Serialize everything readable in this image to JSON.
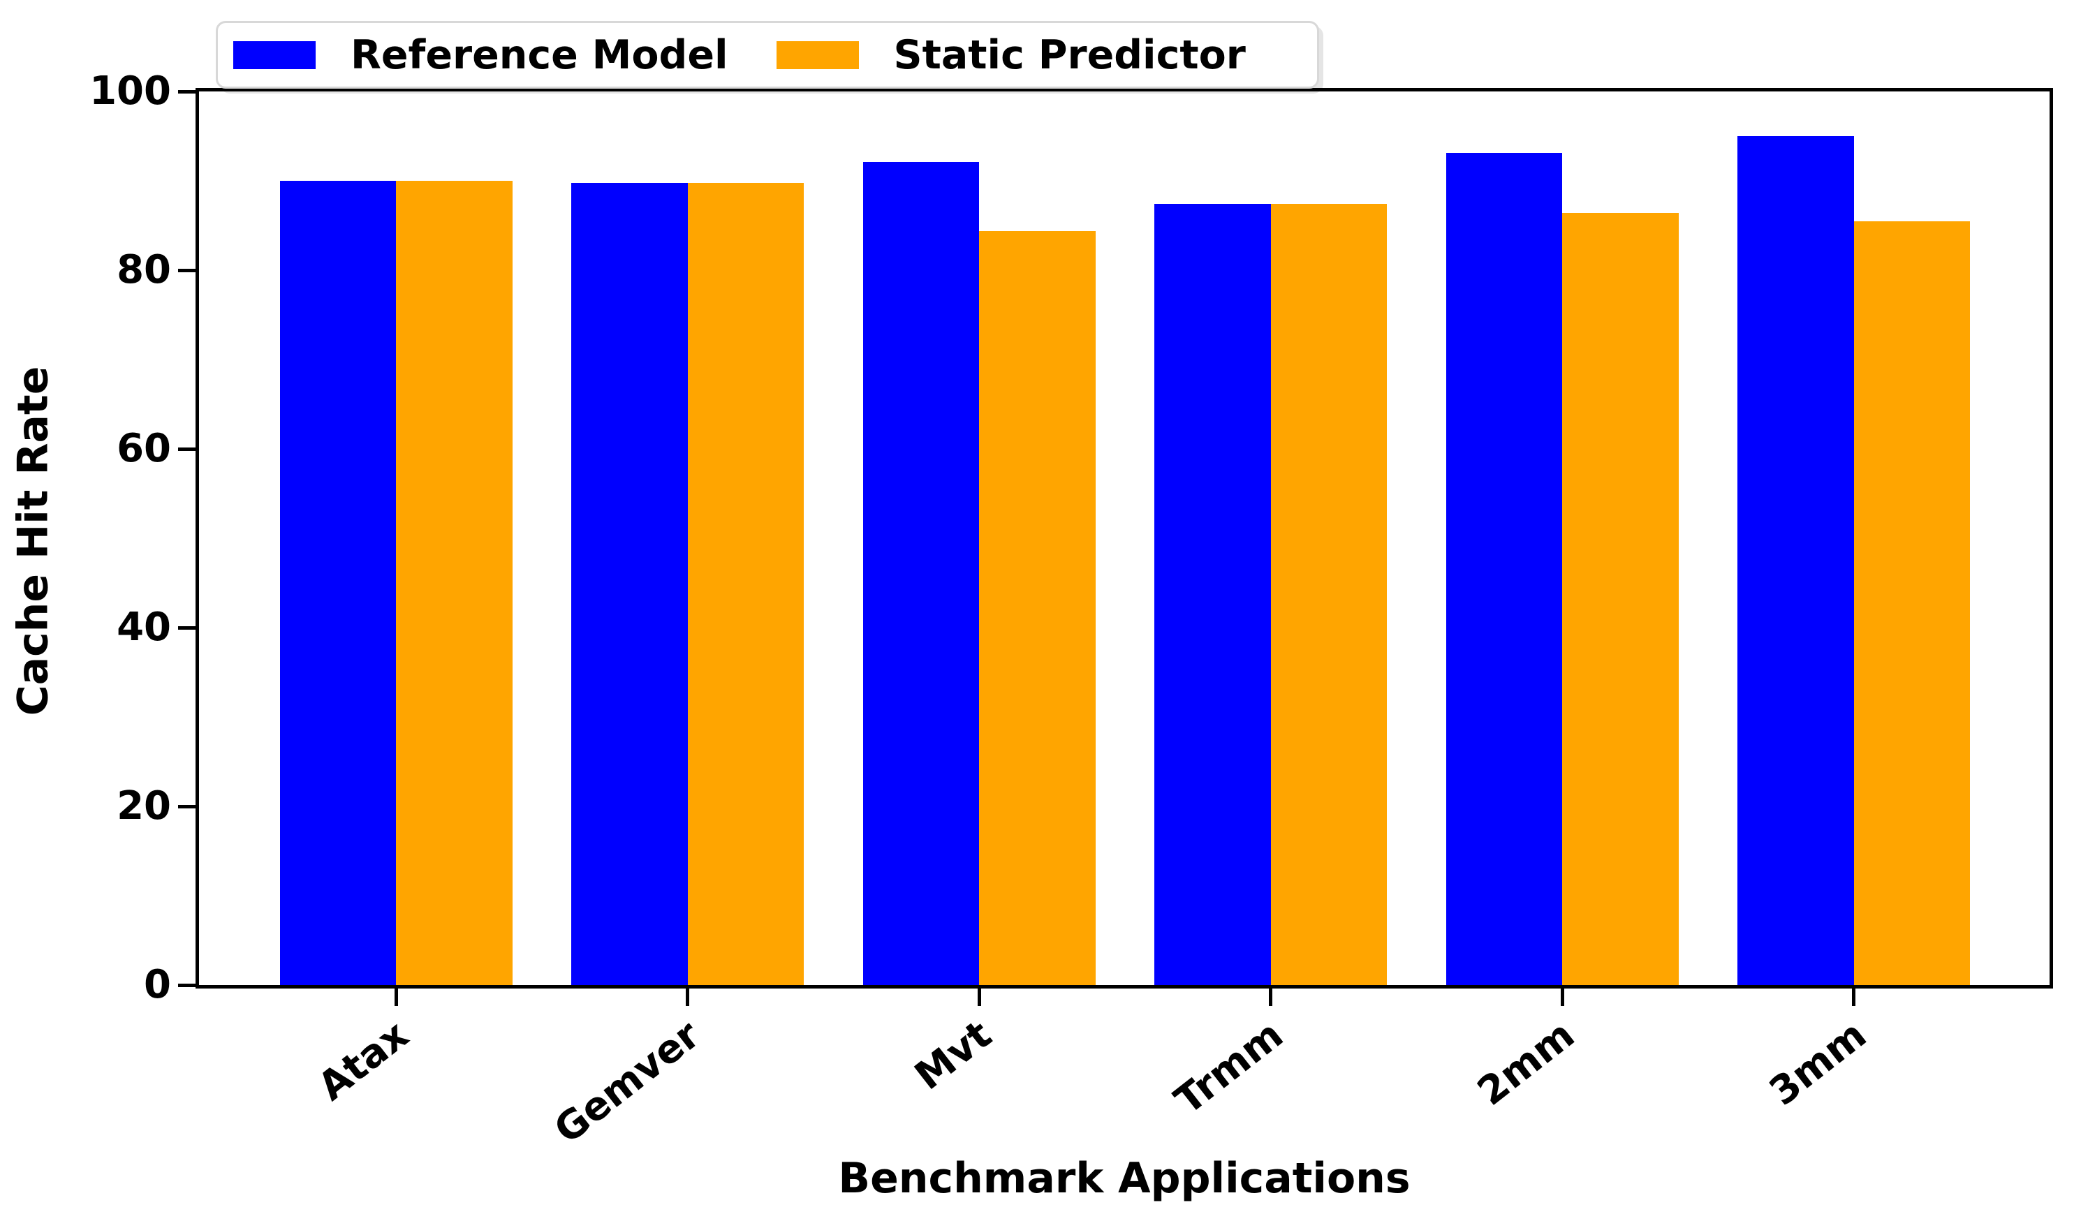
{
  "chart_data": {
    "type": "bar",
    "title": "",
    "xlabel": "Benchmark Applications",
    "ylabel": "Cache Hit Rate",
    "categories": [
      "Atax",
      "Gemver",
      "Mvt",
      "Trmm",
      "2mm",
      "3mm"
    ],
    "series": [
      {
        "name": "Reference Model",
        "color": "#0000ff",
        "values": [
          90.0,
          89.8,
          92.1,
          87.4,
          93.1,
          95.0
        ]
      },
      {
        "name": "Static Predictor",
        "color": "#ffa500",
        "values": [
          90.0,
          89.8,
          84.4,
          87.4,
          86.4,
          85.5
        ]
      }
    ],
    "ylim": [
      0,
      100
    ],
    "yticks": [
      0,
      20,
      40,
      60,
      80,
      100
    ],
    "grid": false,
    "legend_position": "upper left",
    "xtick_rotation_deg": 38,
    "bar_width_fraction": 0.4,
    "spine_color": "#000000",
    "background_color": "#ffffff",
    "text_color": "#000000"
  }
}
